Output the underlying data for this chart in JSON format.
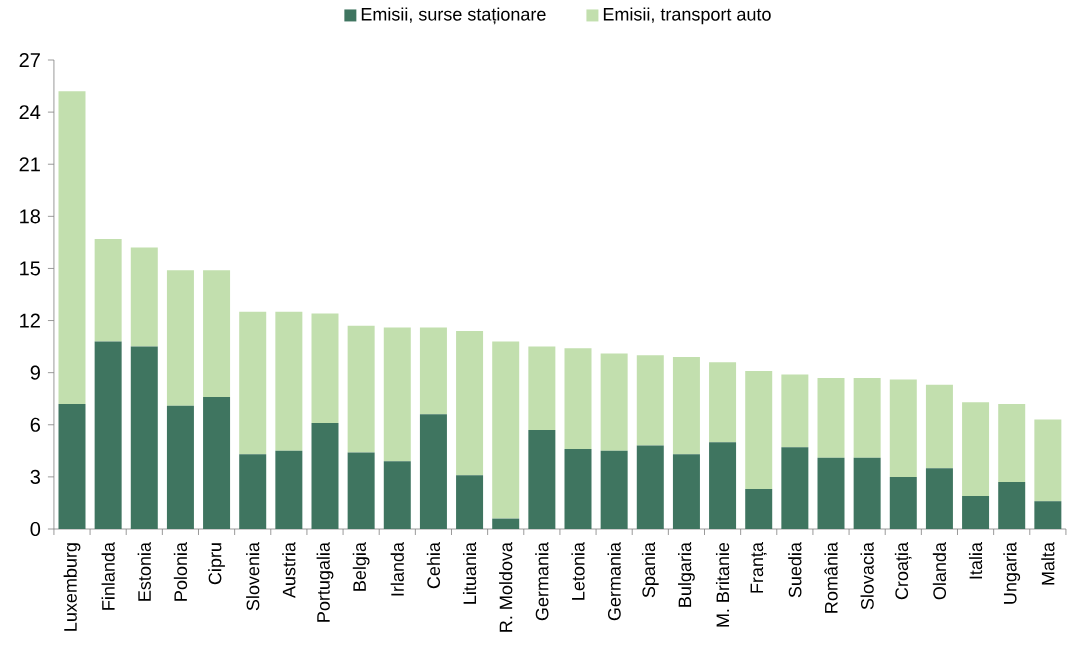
{
  "chart_data": {
    "type": "bar",
    "stacked": true,
    "categories": [
      "Luxemburg",
      "Finlanda",
      "Estonia",
      "Polonia",
      "Cipru",
      "Slovenia",
      "Austria",
      "Portugalia",
      "Belgia",
      "Irlanda",
      "Cehia",
      "Lituania",
      "R. Moldova",
      "Germania",
      "Letonia",
      "Germania",
      "Spania",
      "Bulgaria",
      "M. Britanie",
      "Franța",
      "Suedia",
      "România",
      "Slovacia",
      "Croația",
      "Olanda",
      "Italia",
      "Ungaria",
      "Malta"
    ],
    "series": [
      {
        "name": "Emisii, surse staționare",
        "color": "#3f7560",
        "values": [
          7.2,
          10.8,
          10.5,
          7.1,
          7.6,
          4.3,
          4.5,
          6.1,
          4.4,
          3.9,
          6.6,
          3.1,
          0.6,
          5.7,
          4.6,
          4.5,
          4.8,
          4.3,
          5.0,
          2.3,
          4.7,
          4.1,
          4.1,
          3.0,
          3.5,
          1.9,
          2.7,
          1.6
        ]
      },
      {
        "name": "Emisii, transport auto",
        "color": "#c2dfae",
        "values": [
          18.0,
          5.9,
          5.7,
          7.8,
          7.3,
          8.2,
          8.0,
          6.3,
          7.3,
          7.7,
          5.0,
          8.3,
          10.2,
          4.8,
          5.8,
          5.6,
          5.2,
          5.6,
          4.6,
          6.8,
          4.2,
          4.6,
          4.6,
          5.6,
          4.8,
          5.4,
          4.5,
          4.7
        ]
      }
    ],
    "ylim": [
      0,
      27
    ],
    "yticks": [
      0,
      3,
      6,
      9,
      12,
      15,
      18,
      21,
      24,
      27
    ],
    "grid": false,
    "legend": "top"
  }
}
